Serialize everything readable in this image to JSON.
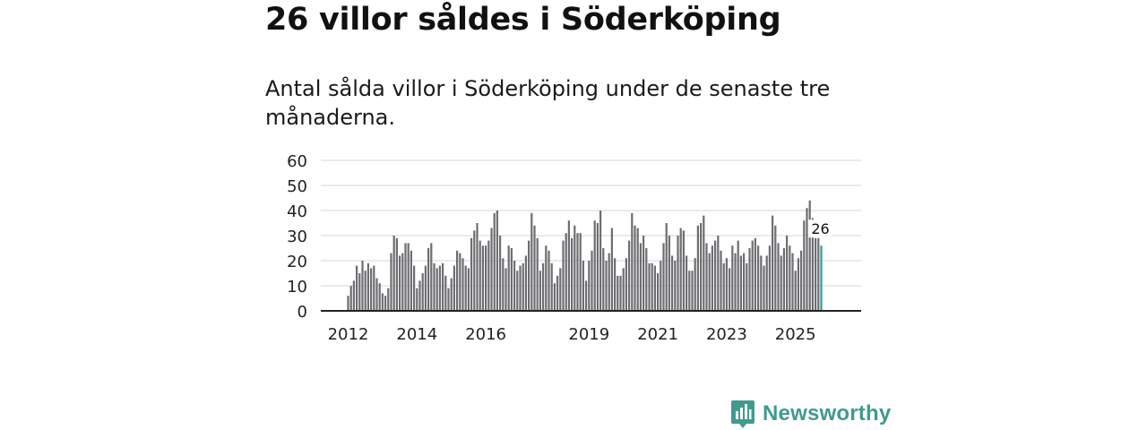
{
  "header": {
    "title": "26 villor såldes i Söderköping",
    "subtitle": "Antal sålda villor i Söderköping under de senaste tre månaderna."
  },
  "brand": {
    "name": "Newsworthy",
    "icon": "chart-badge-icon",
    "color": "#3f9a8f"
  },
  "colors": {
    "bar": "#6d6d72",
    "highlight": "#2aa198",
    "grid": "#d6d6d6",
    "axis": "#222222"
  },
  "chart_data": {
    "type": "bar",
    "title": "Antal sålda villor i Söderköping",
    "xlabel": "",
    "ylabel": "",
    "ylim": [
      0,
      60
    ],
    "yticks": [
      0,
      10,
      20,
      30,
      40,
      50,
      60
    ],
    "xticks": [
      {
        "label": "2012",
        "index": 0
      },
      {
        "label": "2014",
        "index": 24
      },
      {
        "label": "2016",
        "index": 48
      },
      {
        "label": "2019",
        "index": 84
      },
      {
        "label": "2021",
        "index": 108
      },
      {
        "label": "2023",
        "index": 132
      },
      {
        "label": "2025",
        "index": 156
      }
    ],
    "start": "2012-01",
    "interval": "month",
    "highlight_label": "26",
    "values": [
      6,
      10,
      12,
      18,
      15,
      20,
      16,
      19,
      17,
      18,
      13,
      11,
      7,
      6,
      9,
      23,
      30,
      29,
      22,
      23,
      27,
      27,
      24,
      18,
      9,
      12,
      15,
      18,
      25,
      27,
      19,
      17,
      18,
      19,
      14,
      9,
      13,
      18,
      24,
      23,
      21,
      18,
      17,
      29,
      32,
      35,
      28,
      26,
      26,
      28,
      33,
      39,
      40,
      30,
      21,
      17,
      26,
      25,
      20,
      16,
      18,
      19,
      22,
      28,
      39,
      34,
      29,
      16,
      19,
      26,
      24,
      19,
      11,
      14,
      17,
      28,
      31,
      36,
      29,
      34,
      31,
      31,
      20,
      12,
      20,
      24,
      36,
      35,
      40,
      25,
      20,
      23,
      33,
      21,
      14,
      14,
      17,
      21,
      28,
      39,
      34,
      33,
      27,
      30,
      25,
      19,
      19,
      18,
      15,
      20,
      27,
      35,
      30,
      22,
      20,
      30,
      33,
      32,
      22,
      16,
      16,
      21,
      34,
      35,
      38,
      27,
      23,
      26,
      28,
      30,
      24,
      19,
      21,
      17,
      26,
      23,
      28,
      22,
      23,
      19,
      25,
      28,
      29,
      26,
      22,
      18,
      22,
      26,
      38,
      34,
      27,
      22,
      25,
      30,
      26,
      23,
      16,
      21,
      24,
      36,
      41,
      44,
      37,
      29,
      29,
      26
    ]
  }
}
